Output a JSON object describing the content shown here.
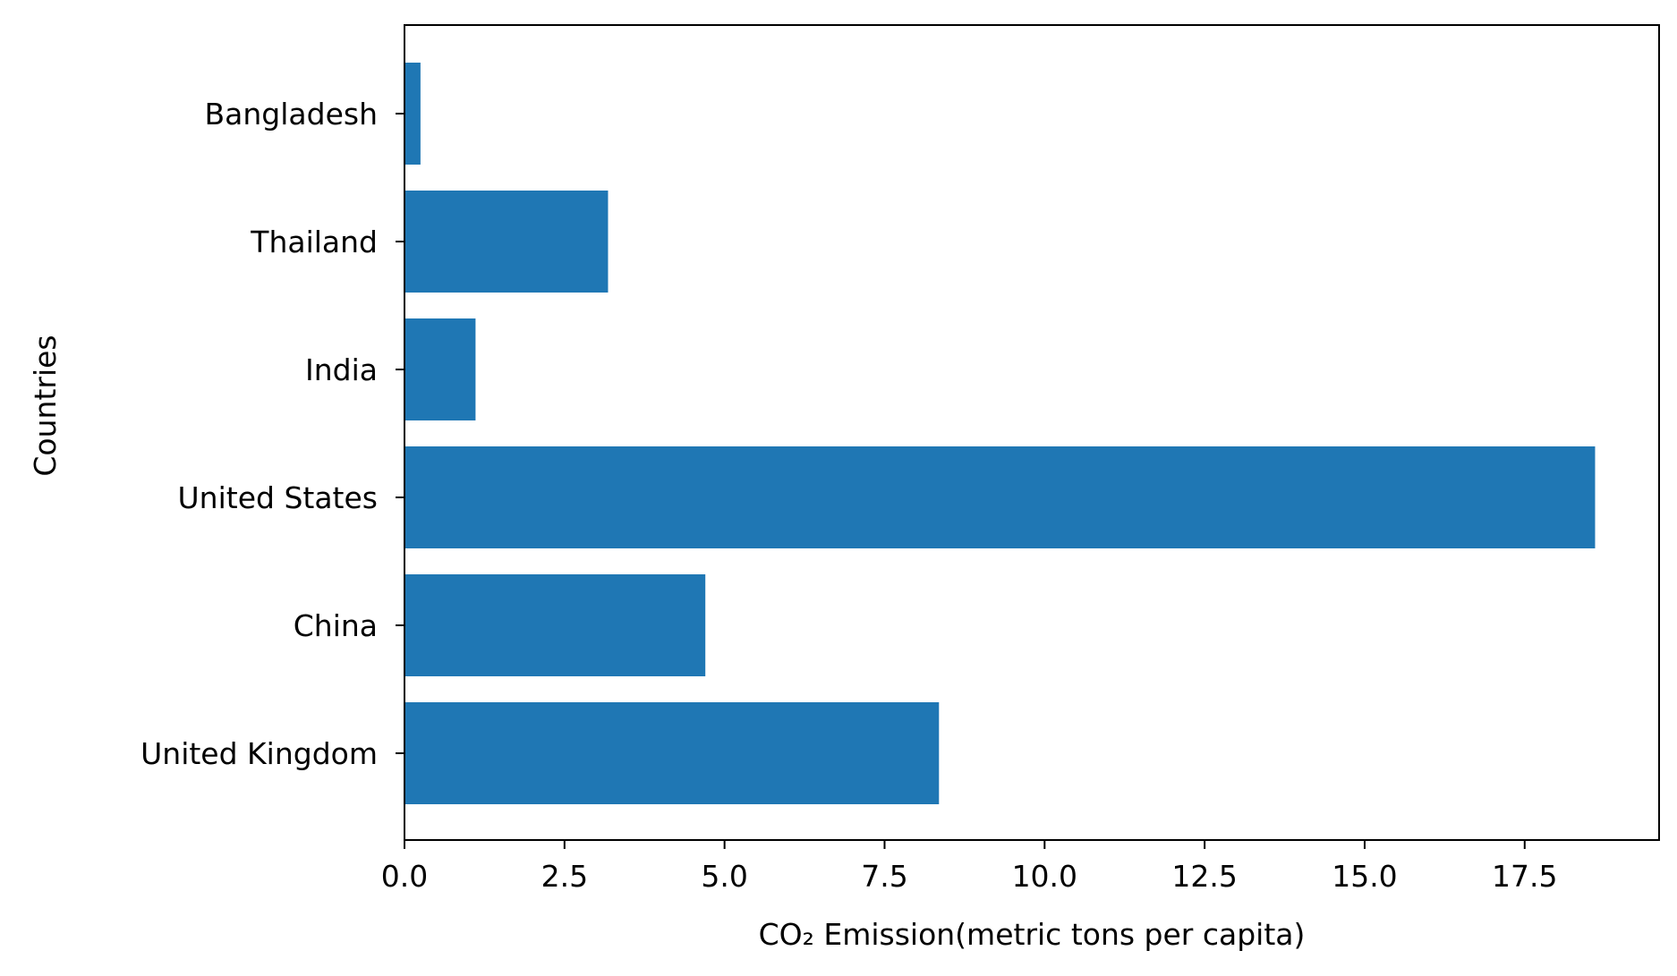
{
  "chart_data": {
    "type": "bar",
    "orientation": "horizontal",
    "categories": [
      "Bangladesh",
      "Thailand",
      "India",
      "United States",
      "China",
      "United Kingdom"
    ],
    "values": [
      0.25,
      3.18,
      1.11,
      18.6,
      4.7,
      8.35
    ],
    "bar_color": "#1f77b4",
    "title": "",
    "xlabel": "CO₂ Emission(metric tons per capita)",
    "ylabel": "Countries",
    "xlim": [
      0,
      19.6
    ],
    "xticks": [
      0.0,
      2.5,
      5.0,
      7.5,
      10.0,
      12.5,
      15.0,
      17.5
    ],
    "xtick_labels": [
      "0.0",
      "2.5",
      "5.0",
      "7.5",
      "10.0",
      "12.5",
      "15.0",
      "17.5"
    ],
    "grid": false,
    "legend": "none"
  }
}
